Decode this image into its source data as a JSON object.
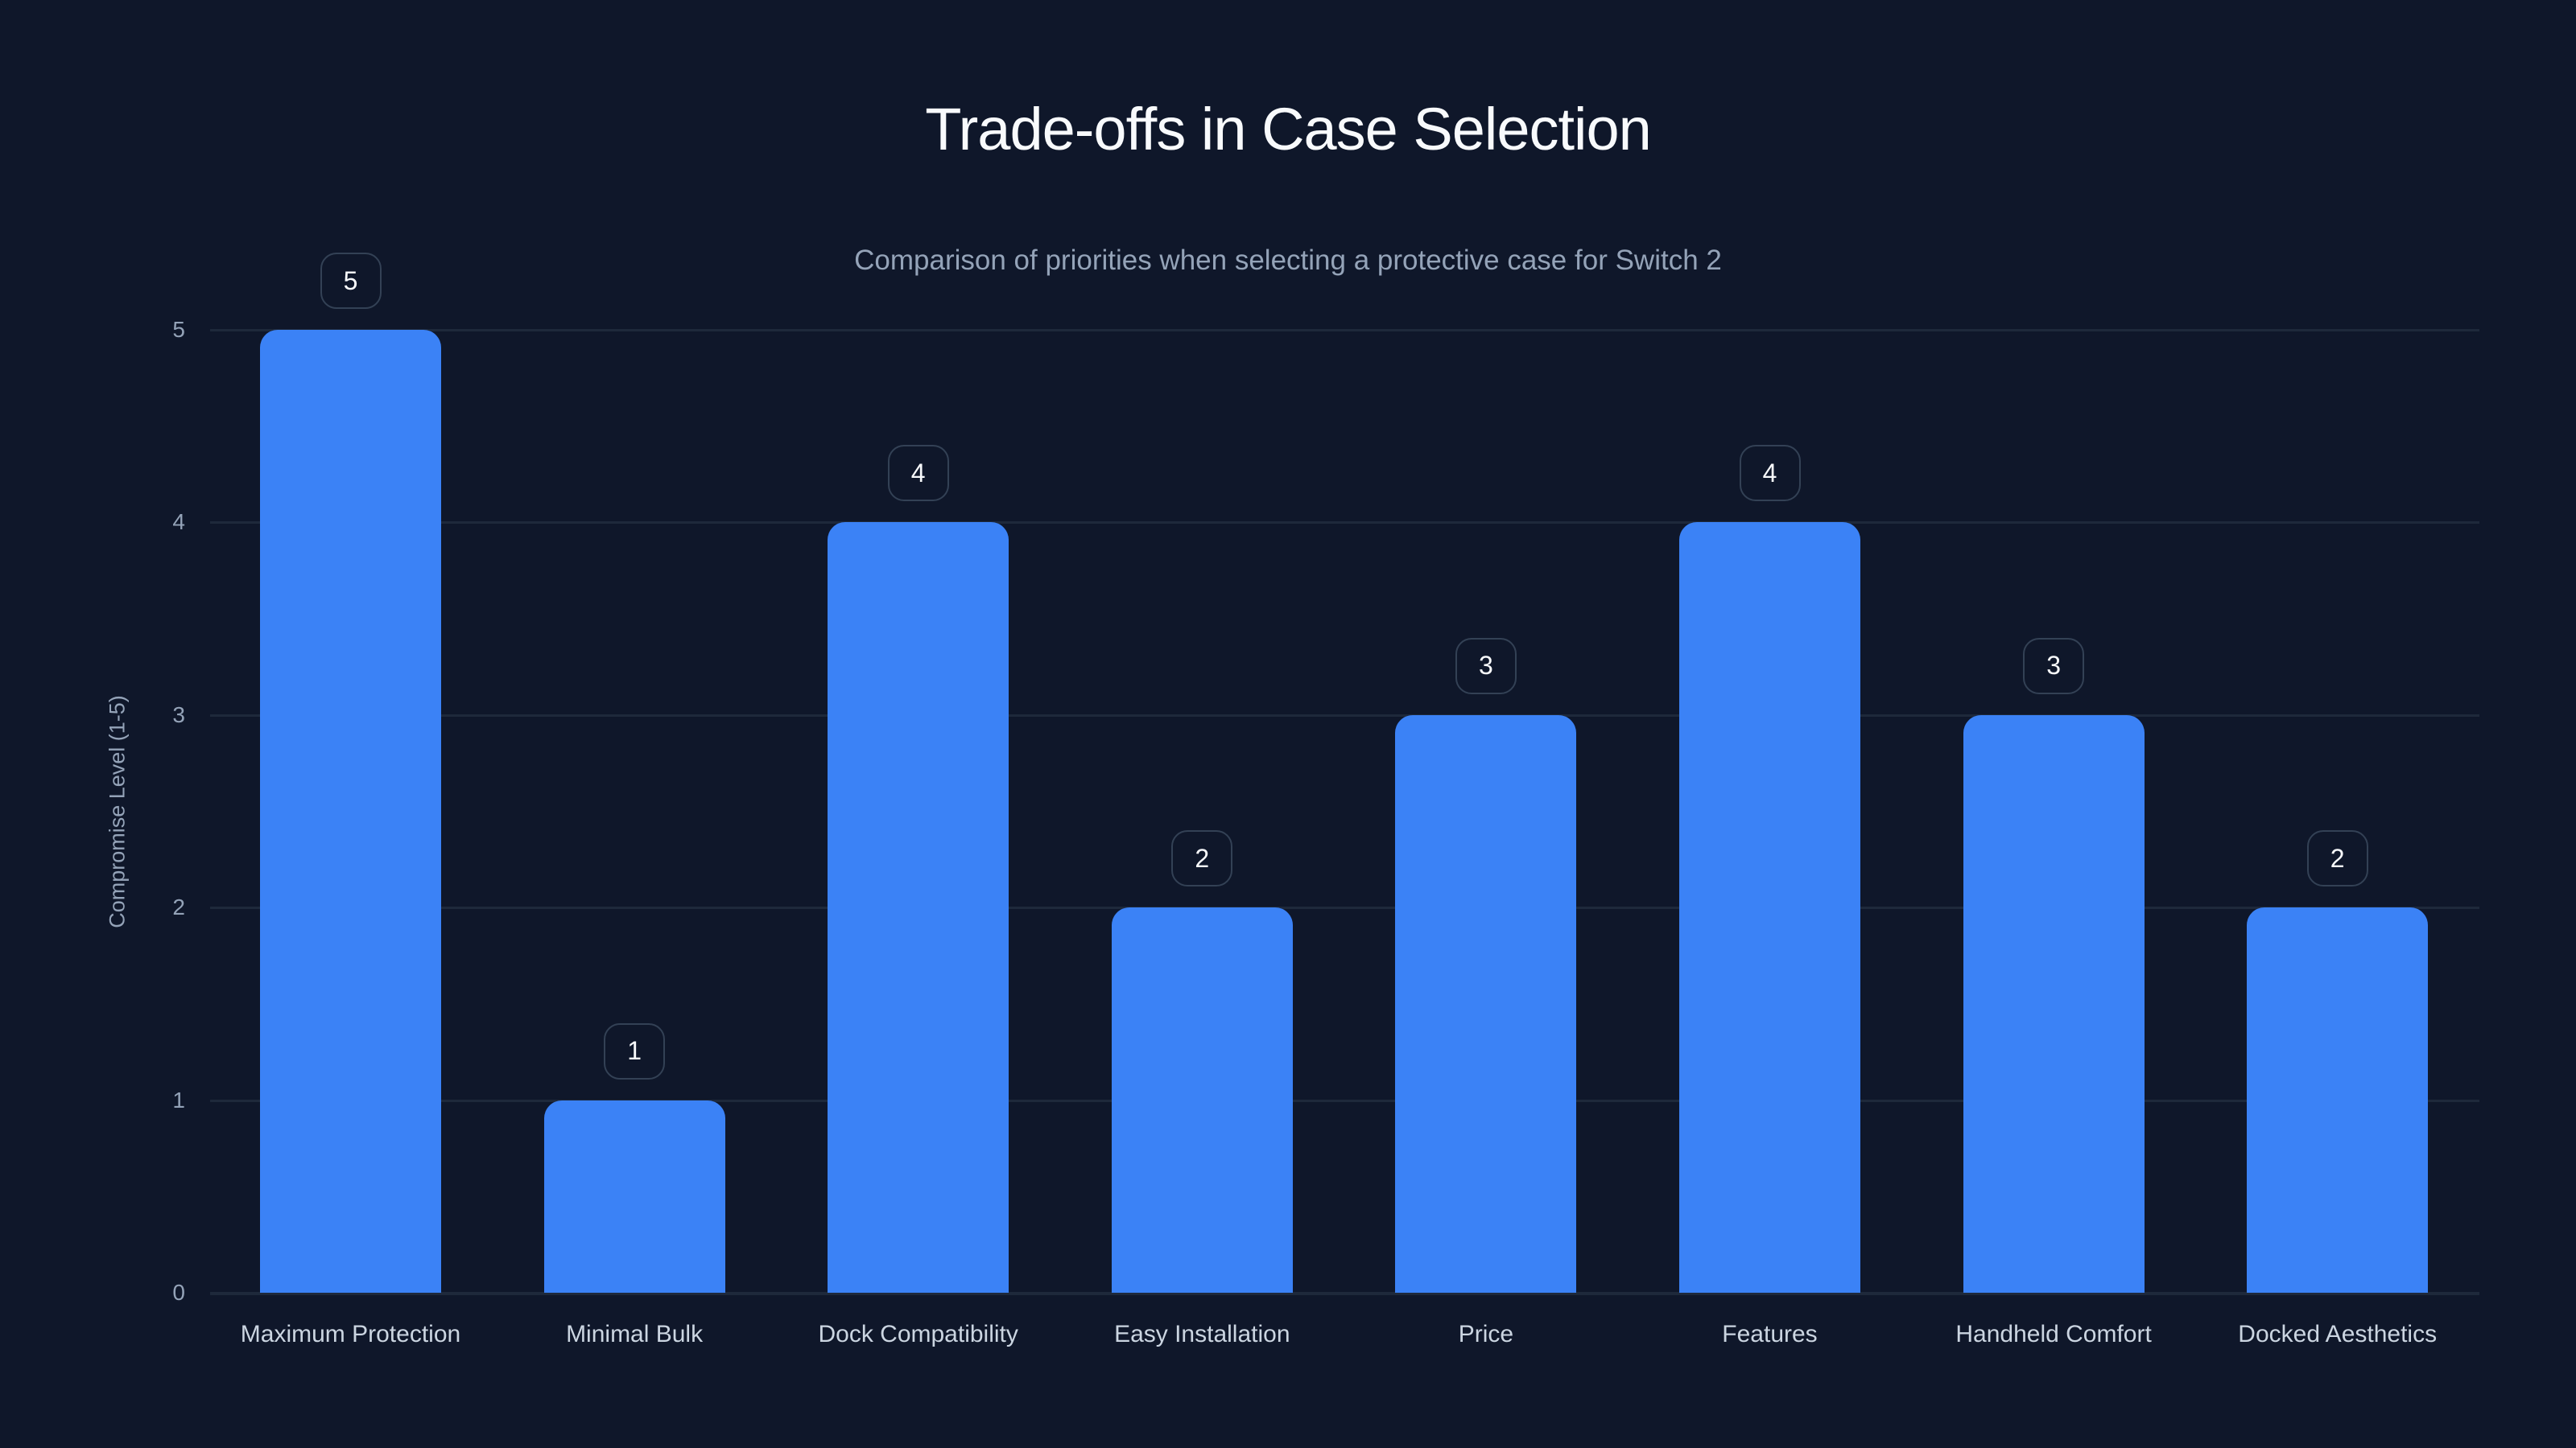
{
  "chart": {
    "title": "Trade-offs in Case Selection",
    "subtitle": "Comparison of priorities when selecting a protective case for Switch 2",
    "ylabel": "Compromise Level (1-5)",
    "yticks": [
      "0",
      "1",
      "2",
      "3",
      "4",
      "5"
    ],
    "bar_color": "#3b82f6",
    "background_color": "#0f172a"
  },
  "chart_data": {
    "type": "bar",
    "title": "Trade-offs in Case Selection",
    "subtitle": "Comparison of priorities when selecting a protective case for Switch 2",
    "xlabel": "",
    "ylabel": "Compromise Level (1-5)",
    "ylim": [
      0,
      5
    ],
    "yticks": [
      0,
      1,
      2,
      3,
      4,
      5
    ],
    "grid": true,
    "legend": null,
    "categories": [
      "Maximum Protection",
      "Minimal Bulk",
      "Dock Compatibility",
      "Easy Installation",
      "Price",
      "Features",
      "Handheld Comfort",
      "Docked Aesthetics"
    ],
    "values": [
      5,
      1,
      4,
      2,
      3,
      4,
      3,
      2
    ],
    "data_labels": [
      "5",
      "1",
      "4",
      "2",
      "3",
      "4",
      "3",
      "2"
    ]
  }
}
